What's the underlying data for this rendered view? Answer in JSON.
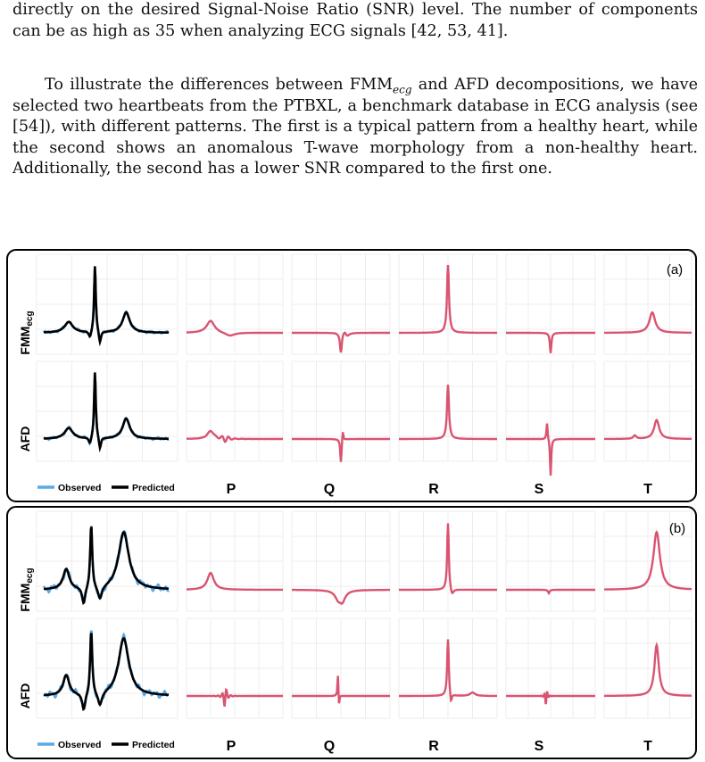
{
  "text": {
    "p1": "directly on the desired Signal-Noise Ratio (SNR) level. The number of components can be as high as 35 when analyzing ECG signals [42, 53, 41].",
    "p2_a": "To illustrate the differences between FMM",
    "p2_sub": "ecg",
    "p2_b": " and AFD decompositions, we have selected two heartbeats from the PTBXL, a benchmark database in ECG analysis (see [54]), with different patterns. The first is a typical pattern from a healthy heart, while the second shows an anomalous T-wave morphology from a non-healthy heart. Additionally, the second has a lower SNR compared to the first one."
  },
  "figure": {
    "row_labels": {
      "fmm_main": "FMM",
      "fmm_sub": "ecg",
      "afd": "AFD"
    },
    "legend": {
      "observed": "Observed",
      "predicted": "Predicted"
    },
    "columns": [
      "P",
      "Q",
      "R",
      "S",
      "T"
    ],
    "colors": {
      "observed": "#5aaae6",
      "predicted": "#000000",
      "component": "#d95470",
      "grid": "#ececec"
    },
    "panels": [
      {
        "tag": "(a)",
        "pattern": "healthy"
      },
      {
        "tag": "(b)",
        "pattern": "anomalous T-wave, lower SNR"
      }
    ]
  }
}
